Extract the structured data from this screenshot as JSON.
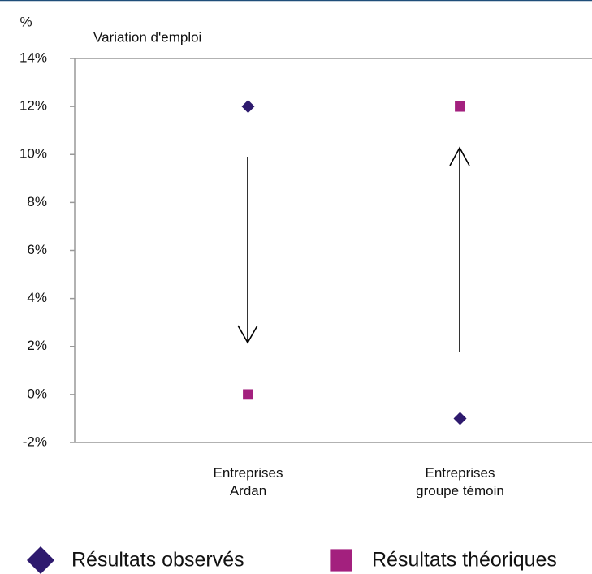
{
  "chart_data": {
    "type": "scatter",
    "title": "Variation d'emploi",
    "ylabel": "%",
    "categories": [
      "Entreprises Ardan",
      "Entreprises groupe témoin"
    ],
    "series": [
      {
        "name": "Résultats observés",
        "color": "#2e1a6e",
        "marker": "diamond",
        "values": [
          12,
          -1
        ]
      },
      {
        "name": "Résultats théoriques",
        "color": "#a3207e",
        "marker": "square",
        "values": [
          0,
          12
        ]
      }
    ],
    "ylim": [
      -2,
      14
    ],
    "yticks": [
      {
        "value": -2,
        "label": "-2%"
      },
      {
        "value": 0,
        "label": "0%"
      },
      {
        "value": 2,
        "label": "2%"
      },
      {
        "value": 4,
        "label": "4%"
      },
      {
        "value": 6,
        "label": "6%"
      },
      {
        "value": 8,
        "label": "8%"
      },
      {
        "value": 10,
        "label": "10%"
      },
      {
        "value": 12,
        "label": "12%"
      },
      {
        "value": 14,
        "label": "14%"
      }
    ],
    "legend": "bottom"
  }
}
